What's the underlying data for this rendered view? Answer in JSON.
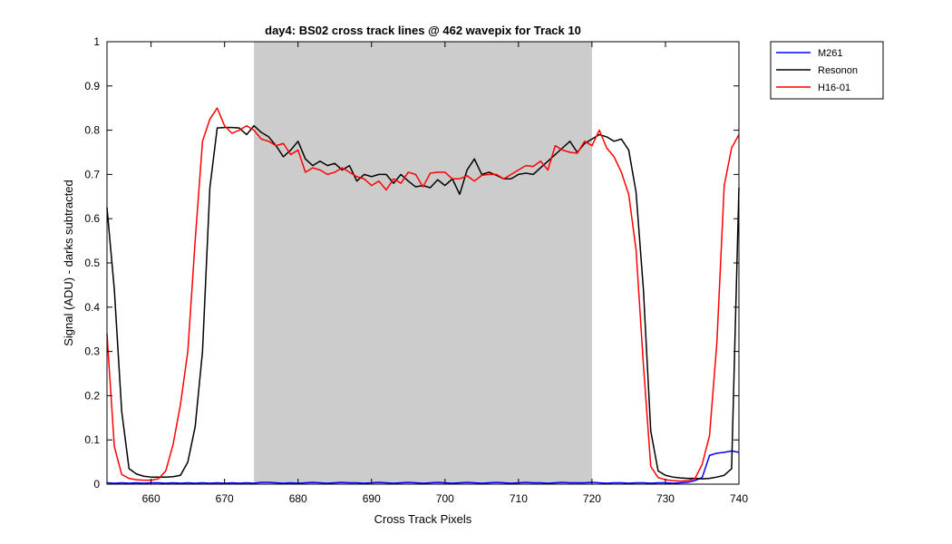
{
  "chart_data": {
    "type": "line",
    "title": "day4: BS02  cross track lines @ 462 wavepix for Track 10",
    "xlabel": "Cross Track Pixels",
    "ylabel": "Signal (ADU) - darks subtracted",
    "xlim": [
      654,
      740
    ],
    "ylim": [
      0,
      1
    ],
    "xticks": [
      660,
      670,
      680,
      690,
      700,
      710,
      720,
      730,
      740
    ],
    "yticks": [
      0,
      0.1,
      0.2,
      0.3,
      0.4,
      0.5,
      0.6,
      0.7,
      0.8,
      0.9,
      1
    ],
    "ytick_labels": [
      "0",
      "0.1",
      "0.2",
      "0.3",
      "0.4",
      "0.5",
      "0.6",
      "0.7",
      "0.8",
      "0.9",
      "1"
    ],
    "shaded_region": {
      "x_start": 674,
      "x_end": 720,
      "color": "#cccccc"
    },
    "grid": false,
    "legend_position": "outside-top-right",
    "series": [
      {
        "name": "M261",
        "color": "#0000ff",
        "x": [
          654,
          655,
          656,
          657,
          658,
          659,
          660,
          661,
          662,
          663,
          664,
          665,
          666,
          667,
          668,
          669,
          670,
          671,
          672,
          673,
          674,
          675,
          676,
          677,
          678,
          679,
          680,
          681,
          682,
          683,
          684,
          685,
          686,
          687,
          688,
          689,
          690,
          691,
          692,
          693,
          694,
          695,
          696,
          697,
          698,
          699,
          700,
          701,
          702,
          703,
          704,
          705,
          706,
          707,
          708,
          709,
          710,
          711,
          712,
          713,
          714,
          715,
          716,
          717,
          718,
          719,
          720,
          721,
          722,
          723,
          724,
          725,
          726,
          727,
          728,
          729,
          730,
          731,
          732,
          733,
          734,
          735,
          736,
          737,
          738,
          739,
          740
        ],
        "y": [
          0.003,
          0.002,
          0.003,
          0.002,
          0.003,
          0.002,
          0.003,
          0.003,
          0.002,
          0.003,
          0.002,
          0.003,
          0.002,
          0.003,
          0.002,
          0.003,
          0.002,
          0.003,
          0.002,
          0.003,
          0.002,
          0.004,
          0.004,
          0.003,
          0.002,
          0.003,
          0.002,
          0.003,
          0.004,
          0.003,
          0.002,
          0.003,
          0.004,
          0.003,
          0.003,
          0.002,
          0.003,
          0.004,
          0.003,
          0.002,
          0.003,
          0.004,
          0.003,
          0.002,
          0.003,
          0.004,
          0.003,
          0.002,
          0.003,
          0.004,
          0.003,
          0.002,
          0.003,
          0.004,
          0.003,
          0.002,
          0.003,
          0.004,
          0.003,
          0.003,
          0.002,
          0.003,
          0.004,
          0.003,
          0.003,
          0.003,
          0.004,
          0.003,
          0.002,
          0.003,
          0.003,
          0.002,
          0.003,
          0.003,
          0.002,
          0.003,
          0.003,
          0.002,
          0.003,
          0.004,
          0.008,
          0.015,
          0.065,
          0.07,
          0.072,
          0.075,
          0.072
        ]
      },
      {
        "name": "Resonon",
        "color": "#000000",
        "x": [
          654,
          655,
          656,
          657,
          658,
          659,
          660,
          661,
          662,
          663,
          664,
          665,
          666,
          667,
          668,
          669,
          670,
          671,
          672,
          673,
          674,
          675,
          676,
          677,
          678,
          679,
          680,
          681,
          682,
          683,
          684,
          685,
          686,
          687,
          688,
          689,
          690,
          691,
          692,
          693,
          694,
          695,
          696,
          697,
          698,
          699,
          700,
          701,
          702,
          703,
          704,
          705,
          706,
          707,
          708,
          709,
          710,
          711,
          712,
          713,
          714,
          715,
          716,
          717,
          718,
          719,
          720,
          721,
          722,
          723,
          724,
          725,
          726,
          727,
          728,
          729,
          730,
          731,
          732,
          733,
          734,
          735,
          736,
          737,
          738,
          739,
          740
        ],
        "y": [
          0.625,
          0.44,
          0.165,
          0.035,
          0.023,
          0.018,
          0.016,
          0.016,
          0.016,
          0.017,
          0.02,
          0.05,
          0.13,
          0.3,
          0.67,
          0.805,
          0.806,
          0.806,
          0.805,
          0.79,
          0.81,
          0.795,
          0.785,
          0.765,
          0.74,
          0.755,
          0.775,
          0.735,
          0.72,
          0.73,
          0.72,
          0.725,
          0.71,
          0.72,
          0.685,
          0.7,
          0.695,
          0.7,
          0.7,
          0.68,
          0.7,
          0.685,
          0.672,
          0.675,
          0.67,
          0.688,
          0.675,
          0.69,
          0.655,
          0.71,
          0.735,
          0.7,
          0.705,
          0.698,
          0.69,
          0.69,
          0.7,
          0.703,
          0.7,
          0.715,
          0.73,
          0.745,
          0.76,
          0.775,
          0.75,
          0.77,
          0.78,
          0.79,
          0.785,
          0.775,
          0.78,
          0.755,
          0.66,
          0.44,
          0.12,
          0.03,
          0.02,
          0.016,
          0.014,
          0.013,
          0.013,
          0.012,
          0.013,
          0.016,
          0.02,
          0.035,
          0.67
        ]
      },
      {
        "name": "H16-01",
        "color": "#ff0000",
        "x": [
          654,
          655,
          656,
          657,
          658,
          659,
          660,
          661,
          662,
          663,
          664,
          665,
          666,
          667,
          668,
          669,
          670,
          671,
          672,
          673,
          674,
          675,
          676,
          677,
          678,
          679,
          680,
          681,
          682,
          683,
          684,
          685,
          686,
          687,
          688,
          689,
          690,
          691,
          692,
          693,
          694,
          695,
          696,
          697,
          698,
          699,
          700,
          701,
          702,
          703,
          704,
          705,
          706,
          707,
          708,
          709,
          710,
          711,
          712,
          713,
          714,
          715,
          716,
          717,
          718,
          719,
          720,
          721,
          722,
          723,
          724,
          725,
          726,
          727,
          728,
          729,
          730,
          731,
          732,
          733,
          734,
          735,
          736,
          737,
          738,
          739,
          740
        ],
        "y": [
          0.34,
          0.085,
          0.022,
          0.013,
          0.01,
          0.009,
          0.009,
          0.012,
          0.03,
          0.09,
          0.18,
          0.3,
          0.55,
          0.775,
          0.825,
          0.85,
          0.81,
          0.793,
          0.8,
          0.81,
          0.8,
          0.78,
          0.775,
          0.765,
          0.77,
          0.745,
          0.755,
          0.705,
          0.715,
          0.71,
          0.7,
          0.705,
          0.715,
          0.705,
          0.695,
          0.69,
          0.675,
          0.685,
          0.665,
          0.69,
          0.68,
          0.705,
          0.7,
          0.672,
          0.703,
          0.705,
          0.705,
          0.69,
          0.69,
          0.697,
          0.685,
          0.698,
          0.7,
          0.7,
          0.69,
          0.7,
          0.71,
          0.72,
          0.718,
          0.73,
          0.71,
          0.765,
          0.755,
          0.75,
          0.748,
          0.775,
          0.765,
          0.8,
          0.76,
          0.74,
          0.705,
          0.655,
          0.53,
          0.27,
          0.04,
          0.015,
          0.01,
          0.008,
          0.007,
          0.008,
          0.012,
          0.045,
          0.11,
          0.32,
          0.675,
          0.76,
          0.79
        ]
      }
    ]
  }
}
